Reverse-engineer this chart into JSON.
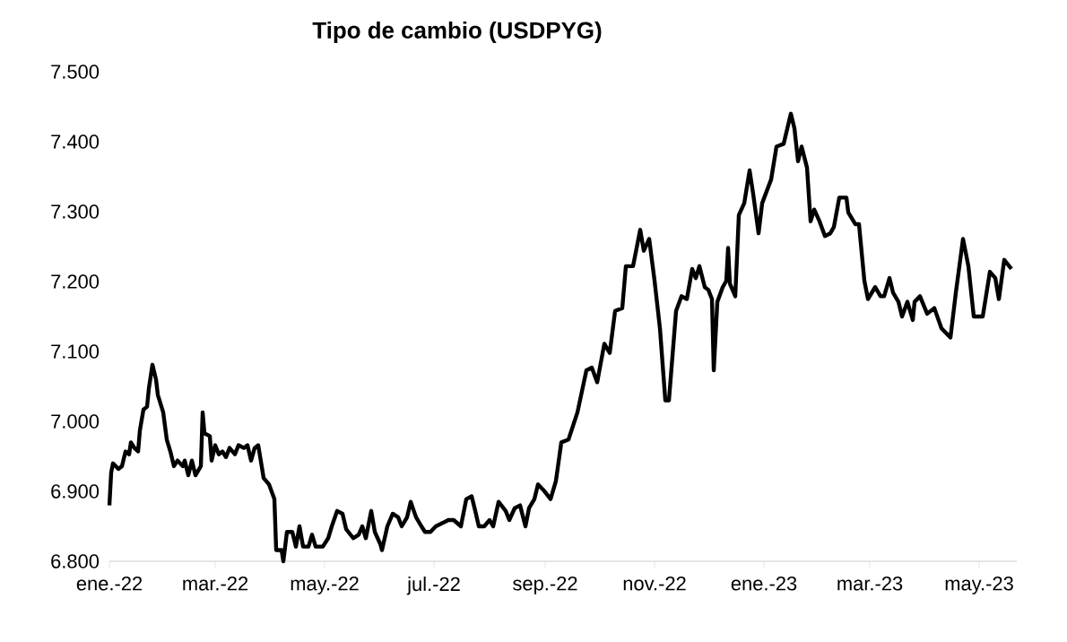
{
  "chart_data": {
    "type": "line",
    "title": "Tipo de cambio (USDPYG)",
    "x": [
      "2022-01-01",
      "2022-01-02",
      "2022-01-03",
      "2022-01-06",
      "2022-01-08",
      "2022-01-10",
      "2022-01-12",
      "2022-01-13",
      "2022-01-15",
      "2022-01-17",
      "2022-01-18",
      "2022-01-20",
      "2022-01-22",
      "2022-01-23",
      "2022-01-25",
      "2022-01-27",
      "2022-01-28",
      "2022-01-31",
      "2022-02-02",
      "2022-02-04",
      "2022-02-06",
      "2022-02-08",
      "2022-02-11",
      "2022-02-12",
      "2022-02-14",
      "2022-02-16",
      "2022-02-18",
      "2022-02-21",
      "2022-02-22",
      "2022-02-23",
      "2022-02-26",
      "2022-02-27",
      "2022-03-01",
      "2022-03-03",
      "2022-03-05",
      "2022-03-07",
      "2022-03-09",
      "2022-03-12",
      "2022-03-14",
      "2022-03-17",
      "2022-03-19",
      "2022-03-21",
      "2022-03-23",
      "2022-03-25",
      "2022-03-28",
      "2022-03-31",
      "2022-04-03",
      "2022-04-04",
      "2022-04-07",
      "2022-04-08",
      "2022-04-10",
      "2022-04-13",
      "2022-04-15",
      "2022-04-17",
      "2022-04-19",
      "2022-04-22",
      "2022-04-24",
      "2022-04-26",
      "2022-04-30",
      "2022-05-03",
      "2022-05-05",
      "2022-05-08",
      "2022-05-11",
      "2022-05-13",
      "2022-05-17",
      "2022-05-20",
      "2022-05-22",
      "2022-05-24",
      "2022-05-27",
      "2022-05-29",
      "2022-06-01",
      "2022-06-02",
      "2022-06-05",
      "2022-06-08",
      "2022-06-11",
      "2022-06-13",
      "2022-06-16",
      "2022-06-18",
      "2022-06-21",
      "2022-06-24",
      "2022-06-26",
      "2022-06-29",
      "2022-07-02",
      "2022-07-06",
      "2022-07-09",
      "2022-07-12",
      "2022-07-16",
      "2022-07-19",
      "2022-07-22",
      "2022-07-24",
      "2022-07-26",
      "2022-07-29",
      "2022-08-01",
      "2022-08-03",
      "2022-08-06",
      "2022-08-10",
      "2022-08-12",
      "2022-08-15",
      "2022-08-18",
      "2022-08-21",
      "2022-08-23",
      "2022-08-26",
      "2022-08-28",
      "2022-08-31",
      "2022-09-04",
      "2022-09-07",
      "2022-09-10",
      "2022-09-14",
      "2022-09-19",
      "2022-09-24",
      "2022-09-27",
      "2022-09-30",
      "2022-10-04",
      "2022-10-07",
      "2022-10-10",
      "2022-10-14",
      "2022-10-16",
      "2022-10-20",
      "2022-10-24",
      "2022-10-26",
      "2022-10-29",
      "2022-11-01",
      "2022-11-04",
      "2022-11-07",
      "2022-11-09",
      "2022-11-13",
      "2022-11-16",
      "2022-11-19",
      "2022-11-22",
      "2022-11-24",
      "2022-11-26",
      "2022-11-29",
      "2022-12-01",
      "2022-12-03",
      "2022-12-04",
      "2022-12-06",
      "2022-12-09",
      "2022-12-11",
      "2022-12-12",
      "2022-12-13",
      "2022-12-16",
      "2022-12-18",
      "2022-12-21",
      "2022-12-24",
      "2022-12-26",
      "2022-12-29",
      "2022-12-31",
      "2023-01-05",
      "2023-01-08",
      "2023-01-12",
      "2023-01-16",
      "2023-01-18",
      "2023-01-20",
      "2023-01-22",
      "2023-01-25",
      "2023-01-27",
      "2023-01-29",
      "2023-02-01",
      "2023-02-04",
      "2023-02-07",
      "2023-02-09",
      "2023-02-12",
      "2023-02-16",
      "2023-02-17",
      "2023-02-21",
      "2023-02-23",
      "2023-02-26",
      "2023-02-28",
      "2023-03-04",
      "2023-03-07",
      "2023-03-09",
      "2023-03-12",
      "2023-03-14",
      "2023-03-17",
      "2023-03-19",
      "2023-03-22",
      "2023-03-25",
      "2023-03-26",
      "2023-03-29",
      "2023-04-02",
      "2023-04-06",
      "2023-04-10",
      "2023-04-15",
      "2023-04-18",
      "2023-04-22",
      "2023-04-25",
      "2023-04-28",
      "2023-05-03",
      "2023-05-07",
      "2023-05-10",
      "2023-05-12",
      "2023-05-15",
      "2023-05-19"
    ],
    "series": [
      {
        "color": "#000000",
        "values": [
          6880,
          6927,
          6940,
          6932,
          6936,
          6957,
          6953,
          6970,
          6962,
          6957,
          6987,
          7017,
          7021,
          7047,
          7081,
          7060,
          7038,
          7013,
          6974,
          6957,
          6936,
          6944,
          6936,
          6944,
          6923,
          6944,
          6923,
          6936,
          7013,
          6983,
          6979,
          6944,
          6966,
          6953,
          6957,
          6949,
          6962,
          6953,
          6966,
          6962,
          6966,
          6944,
          6962,
          6966,
          6919,
          6910,
          6889,
          6816,
          6816,
          6800,
          6842,
          6842,
          6821,
          6850,
          6821,
          6821,
          6838,
          6821,
          6821,
          6833,
          6850,
          6872,
          6868,
          6846,
          6833,
          6838,
          6850,
          6833,
          6872,
          6842,
          6825,
          6816,
          6850,
          6868,
          6863,
          6850,
          6863,
          6885,
          6863,
          6850,
          6842,
          6842,
          6850,
          6855,
          6859,
          6859,
          6850,
          6889,
          6893,
          6872,
          6850,
          6850,
          6859,
          6850,
          6885,
          6872,
          6859,
          6876,
          6880,
          6850,
          6876,
          6889,
          6910,
          6902,
          6889,
          6915,
          6970,
          6974,
          7013,
          7073,
          7077,
          7056,
          7111,
          7098,
          7158,
          7162,
          7222,
          7222,
          7274,
          7244,
          7261,
          7201,
          7133,
          7030,
          7030,
          7158,
          7179,
          7175,
          7218,
          7205,
          7222,
          7192,
          7188,
          7175,
          7073,
          7171,
          7192,
          7201,
          7248,
          7197,
          7179,
          7295,
          7312,
          7359,
          7325,
          7269,
          7312,
          7346,
          7393,
          7397,
          7440,
          7419,
          7372,
          7393,
          7363,
          7286,
          7303,
          7286,
          7265,
          7269,
          7278,
          7320,
          7320,
          7299,
          7282,
          7282,
          7201,
          7175,
          7192,
          7179,
          7179,
          7205,
          7184,
          7171,
          7150,
          7171,
          7145,
          7171,
          7179,
          7154,
          7162,
          7133,
          7120,
          7184,
          7261,
          7222,
          7150,
          7150,
          7214,
          7205,
          7175,
          7231,
          7218
        ]
      }
    ],
    "xlim": [
      "2022-01-01",
      "2023-05-22"
    ],
    "xticks": [
      {
        "value": "2022-01-01",
        "label": "ene.-22"
      },
      {
        "value": "2022-03-01",
        "label": "mar.-22"
      },
      {
        "value": "2022-05-01",
        "label": "may.-22"
      },
      {
        "value": "2022-07-01",
        "label": "jul.-22"
      },
      {
        "value": "2022-09-01",
        "label": "sep.-22"
      },
      {
        "value": "2022-11-01",
        "label": "nov.-22"
      },
      {
        "value": "2023-01-01",
        "label": "ene.-23"
      },
      {
        "value": "2023-03-01",
        "label": "mar.-23"
      },
      {
        "value": "2023-05-01",
        "label": "may.-23"
      }
    ],
    "ylim": [
      6800,
      7500
    ],
    "yticks": [
      {
        "value": 6800,
        "label": "6.800"
      },
      {
        "value": 6900,
        "label": "6.900"
      },
      {
        "value": 7000,
        "label": "7.000"
      },
      {
        "value": 7100,
        "label": "7.100"
      },
      {
        "value": 7200,
        "label": "7.200"
      },
      {
        "value": 7300,
        "label": "7.300"
      },
      {
        "value": 7400,
        "label": "7.400"
      },
      {
        "value": 7500,
        "label": "7.500"
      }
    ],
    "grid": false,
    "marker": "none",
    "line_style": "solid"
  }
}
